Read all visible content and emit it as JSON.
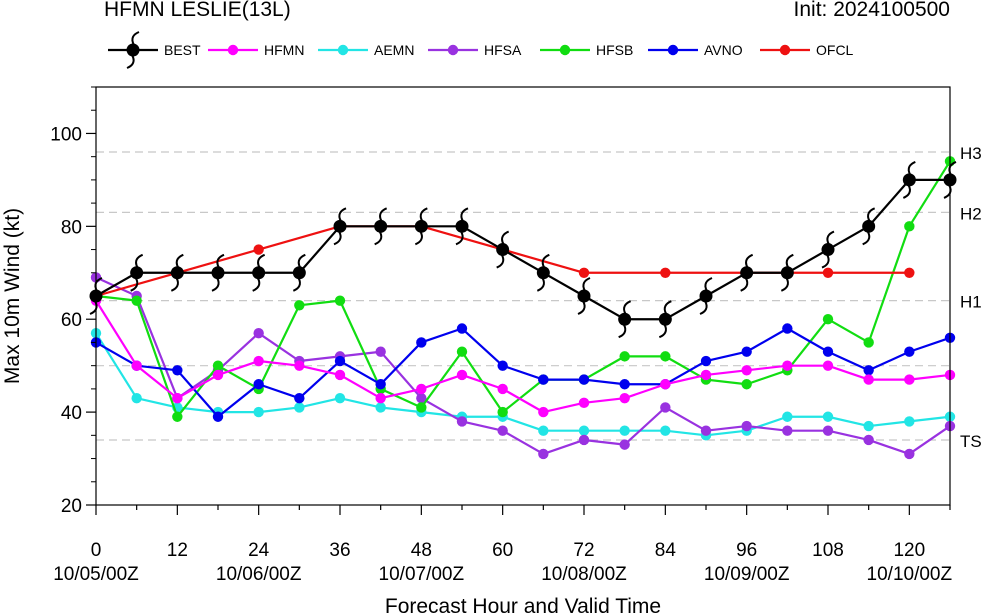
{
  "title_left": "HFMN LESLIE(13L)",
  "title_right": "Init: 2024100500",
  "chart_data": {
    "type": "line",
    "title": "HFMN LESLIE(13L)",
    "xlabel": "Forecast Hour and Valid Time",
    "ylabel": "Max 10m Wind (kt)",
    "xlim": [
      0,
      126
    ],
    "ylim": [
      20,
      110
    ],
    "x_ticks": [
      0,
      12,
      24,
      36,
      48,
      60,
      72,
      84,
      96,
      108,
      120
    ],
    "x_date_labels": [
      "10/05/00Z",
      "10/06/00Z",
      "10/07/00Z",
      "10/08/00Z",
      "10/09/00Z",
      "10/10/00Z"
    ],
    "y_ticks": [
      20,
      40,
      60,
      80,
      100
    ],
    "thresholds": [
      {
        "label": "TS",
        "value": 34
      },
      {
        "label": "H1",
        "value": 64
      },
      {
        "label": "H2",
        "value": 83
      },
      {
        "label": "H3",
        "value": 96
      }
    ],
    "extra_gridlines": [
      50
    ],
    "series": [
      {
        "name": "BEST",
        "color": "#000000",
        "x": [
          0,
          6,
          12,
          18,
          24,
          30,
          36,
          42,
          48,
          54,
          60,
          66,
          72,
          78,
          84,
          90,
          96,
          102,
          108,
          114,
          120,
          126
        ],
        "y": [
          65,
          70,
          70,
          70,
          70,
          70,
          80,
          80,
          80,
          80,
          75,
          70,
          65,
          60,
          60,
          65,
          70,
          70,
          75,
          80,
          90,
          90
        ]
      },
      {
        "name": "HFMN",
        "color": "#ff00ff",
        "x": [
          0,
          6,
          12,
          18,
          24,
          30,
          36,
          42,
          48,
          54,
          60,
          66,
          72,
          78,
          84,
          90,
          96,
          102,
          108,
          114,
          120,
          126
        ],
        "y": [
          64,
          50,
          43,
          48,
          51,
          50,
          48,
          43,
          45,
          48,
          45,
          40,
          42,
          43,
          46,
          48,
          49,
          50,
          50,
          47,
          47,
          48
        ]
      },
      {
        "name": "AEMN",
        "color": "#22e5e5",
        "x": [
          0,
          6,
          12,
          18,
          24,
          30,
          36,
          42,
          48,
          54,
          60,
          66,
          72,
          78,
          84,
          90,
          96,
          102,
          108,
          114,
          120,
          126
        ],
        "y": [
          57,
          43,
          41,
          40,
          40,
          41,
          43,
          41,
          40,
          39,
          39,
          36,
          36,
          36,
          36,
          35,
          36,
          39,
          39,
          37,
          38,
          39
        ]
      },
      {
        "name": "HFSA",
        "color": "#9932e0",
        "x": [
          0,
          6,
          12,
          18,
          24,
          30,
          36,
          42,
          48,
          54,
          60,
          66,
          72,
          78,
          84,
          90,
          96,
          102,
          108,
          114,
          120,
          126
        ],
        "y": [
          69,
          65,
          43,
          49,
          57,
          51,
          52,
          53,
          43,
          38,
          36,
          31,
          34,
          33,
          41,
          36,
          37,
          36,
          36,
          34,
          31,
          37
        ]
      },
      {
        "name": "HFSB",
        "color": "#11dd11",
        "x": [
          0,
          6,
          12,
          18,
          24,
          30,
          36,
          42,
          48,
          54,
          60,
          66,
          72,
          78,
          84,
          90,
          96,
          102,
          108,
          114,
          120,
          126
        ],
        "y": [
          65,
          64,
          39,
          50,
          45,
          63,
          64,
          45,
          41,
          53,
          40,
          47,
          47,
          52,
          52,
          47,
          46,
          49,
          60,
          55,
          80,
          94
        ]
      },
      {
        "name": "AVNO",
        "color": "#0000ee",
        "x": [
          0,
          6,
          12,
          18,
          24,
          30,
          36,
          42,
          48,
          54,
          60,
          66,
          72,
          78,
          84,
          90,
          96,
          102,
          108,
          114,
          120,
          126
        ],
        "y": [
          55,
          50,
          49,
          39,
          46,
          43,
          51,
          46,
          55,
          58,
          50,
          47,
          47,
          46,
          46,
          51,
          53,
          58,
          53,
          49,
          53,
          56
        ]
      },
      {
        "name": "OFCL",
        "color": "#ee1111",
        "x": [
          0,
          12,
          24,
          36,
          48,
          60,
          72,
          84,
          96,
          108,
          120
        ],
        "y": [
          65,
          70,
          75,
          80,
          80,
          75,
          70,
          70,
          70,
          70,
          70
        ]
      }
    ]
  }
}
